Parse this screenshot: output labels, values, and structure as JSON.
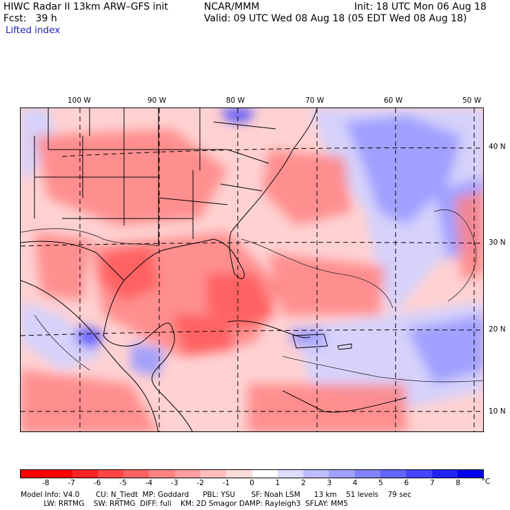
{
  "header": {
    "title": "HIWC Radar II 13km ARW–GFS init",
    "org": "NCAR/MMM",
    "init": "Init: 18 UTC Mon 06 Aug 18",
    "fcst": "Fcst:   39 h",
    "valid": "Valid: 09 UTC Wed 08 Aug 18 (05 EDT Wed 08 Aug 18)",
    "field": "Lifted index"
  },
  "axes": {
    "lon_labels": [
      "100 W",
      "90 W",
      "80 W",
      "70 W",
      "60 W",
      "50 W"
    ],
    "lat_labels": [
      "40 N",
      "30 N",
      "20 N",
      "10 N"
    ]
  },
  "colorbar": {
    "labels": [
      "-8",
      "-7",
      "-6",
      "-5",
      "-4",
      "-3",
      "-2",
      "-1",
      "0",
      "1",
      "2",
      "3",
      "4",
      "5",
      "6",
      "7",
      "8"
    ],
    "unit": "°C",
    "colors": [
      "#ff0000",
      "#ff2323",
      "#ff4646",
      "#ff6464",
      "#ff8282",
      "#ffa0a0",
      "#ffbebe",
      "#ffdcdc",
      "#ffffff",
      "#dcdcff",
      "#bebeff",
      "#a0a0ff",
      "#8282ff",
      "#6464ff",
      "#4646ff",
      "#2323ff",
      "#0000ee"
    ]
  },
  "footer": {
    "line1": "Model Info: V4.0       CU: N_Tiedt  MP: Goddard      PBL: YSU       SF: Noah LSM      13 km    51 levels    79 sec",
    "line2": "          LW: RRTMG    SW: RRTMG  DIFF: full    KM: 2D Smagor DAMP: Rayleigh3  SFLAY: MM5"
  },
  "map_colors": {
    "background": "#ffd2d2",
    "red_core": "#ff5a5a",
    "red_mid": "#ff8282",
    "blue_light": "#d2d2ff",
    "blue_mid": "#9a9aff",
    "blue_strong": "#5050ff"
  }
}
